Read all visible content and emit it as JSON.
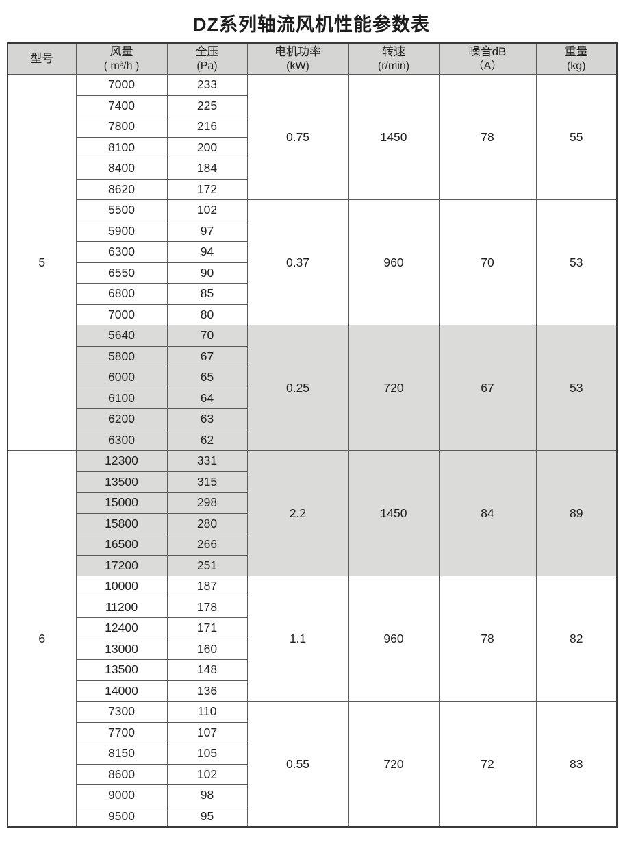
{
  "title": "DZ系列轴流风机性能参数表",
  "table": {
    "headers": [
      {
        "key": "model",
        "line1": "型号",
        "line2": ""
      },
      {
        "key": "airflow",
        "line1": "风量",
        "line2": "( m³/h )"
      },
      {
        "key": "pressure",
        "line1": "全压",
        "line2": "(Pa)"
      },
      {
        "key": "power",
        "line1": "电机功率",
        "line2": "(kW)"
      },
      {
        "key": "speed",
        "line1": "转速",
        "line2": "(r/min)"
      },
      {
        "key": "noise",
        "line1": "噪音dB",
        "line2": "（A）"
      },
      {
        "key": "weight",
        "line1": "重量",
        "line2": "(kg)"
      }
    ],
    "models": [
      {
        "model": "5",
        "groups": [
          {
            "shaded": false,
            "rows": [
              [
                "7000",
                "233"
              ],
              [
                "7400",
                "225"
              ],
              [
                "7800",
                "216"
              ],
              [
                "8100",
                "200"
              ],
              [
                "8400",
                "184"
              ],
              [
                "8620",
                "172"
              ]
            ],
            "power_kw": "0.75",
            "speed_rpm": "1450",
            "noise_db": "78",
            "weight_kg": "55"
          },
          {
            "shaded": false,
            "rows": [
              [
                "5500",
                "102"
              ],
              [
                "5900",
                "97"
              ],
              [
                "6300",
                "94"
              ],
              [
                "6550",
                "90"
              ],
              [
                "6800",
                "85"
              ],
              [
                "7000",
                "80"
              ]
            ],
            "power_kw": "0.37",
            "speed_rpm": "960",
            "noise_db": "70",
            "weight_kg": "53"
          },
          {
            "shaded": true,
            "rows": [
              [
                "5640",
                "70"
              ],
              [
                "5800",
                "67"
              ],
              [
                "6000",
                "65"
              ],
              [
                "6100",
                "64"
              ],
              [
                "6200",
                "63"
              ],
              [
                "6300",
                "62"
              ]
            ],
            "power_kw": "0.25",
            "speed_rpm": "720",
            "noise_db": "67",
            "weight_kg": "53"
          }
        ]
      },
      {
        "model": "6",
        "groups": [
          {
            "shaded": true,
            "rows": [
              [
                "12300",
                "331"
              ],
              [
                "13500",
                "315"
              ],
              [
                "15000",
                "298"
              ],
              [
                "15800",
                "280"
              ],
              [
                "16500",
                "266"
              ],
              [
                "17200",
                "251"
              ]
            ],
            "power_kw": "2.2",
            "speed_rpm": "1450",
            "noise_db": "84",
            "weight_kg": "89"
          },
          {
            "shaded": false,
            "rows": [
              [
                "10000",
                "187"
              ],
              [
                "11200",
                "178"
              ],
              [
                "12400",
                "171"
              ],
              [
                "13000",
                "160"
              ],
              [
                "13500",
                "148"
              ],
              [
                "14000",
                "136"
              ]
            ],
            "power_kw": "1.1",
            "speed_rpm": "960",
            "noise_db": "78",
            "weight_kg": "82"
          },
          {
            "shaded": false,
            "rows": [
              [
                "7300",
                "110"
              ],
              [
                "7700",
                "107"
              ],
              [
                "8150",
                "105"
              ],
              [
                "8600",
                "102"
              ],
              [
                "9000",
                "98"
              ],
              [
                "9500",
                "95"
              ]
            ],
            "power_kw": "0.55",
            "speed_rpm": "720",
            "noise_db": "72",
            "weight_kg": "83"
          }
        ]
      }
    ]
  },
  "colors": {
    "header_bg": "#d5d5d3",
    "shaded_row_bg": "#dbdbd9",
    "border": "#5a5a5a",
    "outer_border": "#3a3a3a",
    "text": "#222222"
  }
}
